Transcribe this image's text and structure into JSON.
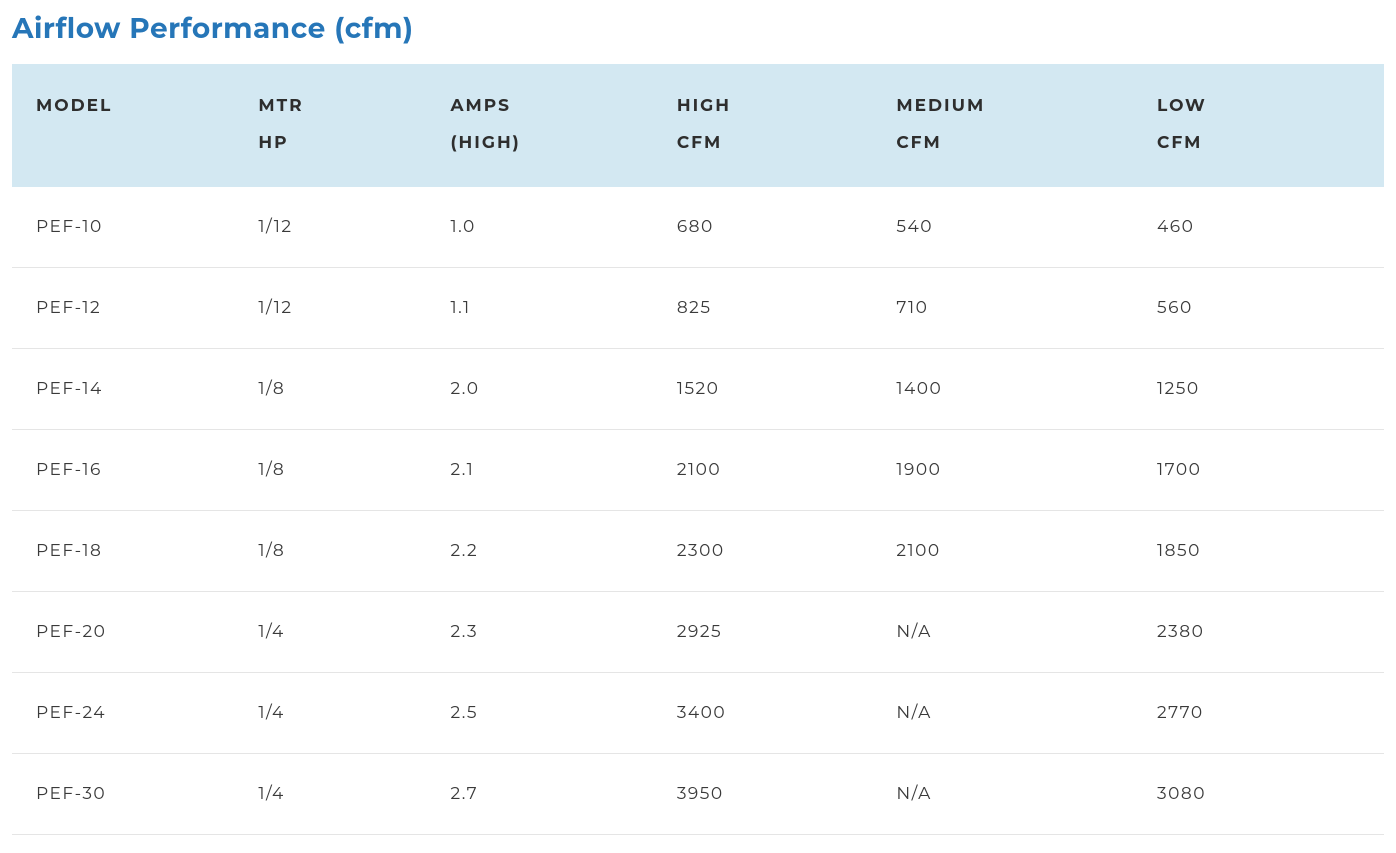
{
  "title": "Airflow Performance (cfm)",
  "table": {
    "columns": [
      {
        "line1": "MODEL",
        "line2": ""
      },
      {
        "line1": "MTR",
        "line2": "HP"
      },
      {
        "line1": "AMPS",
        "line2": "(HIGH)"
      },
      {
        "line1": "HIGH",
        "line2": "CFM"
      },
      {
        "line1": "MEDIUM",
        "line2": "CFM"
      },
      {
        "line1": "LOW",
        "line2": "CFM"
      }
    ],
    "rows": [
      [
        "PEF-10",
        "1/12",
        "1.0",
        "680",
        "540",
        "460"
      ],
      [
        "PEF-12",
        "1/12",
        "1.1",
        "825",
        "710",
        "560"
      ],
      [
        "PEF-14",
        "1/8",
        "2.0",
        "1520",
        "1400",
        "1250"
      ],
      [
        "PEF-16",
        "1/8",
        "2.1",
        "2100",
        "1900",
        "1700"
      ],
      [
        "PEF-18",
        "1/8",
        "2.2",
        "2300",
        "2100",
        "1850"
      ],
      [
        "PEF-20",
        "1/4",
        "2.3",
        "2925",
        "N/A",
        "2380"
      ],
      [
        "PEF-24",
        "1/4",
        "2.5",
        "3400",
        "N/A",
        "2770"
      ],
      [
        "PEF-30",
        "1/4",
        "2.7",
        "3950",
        "N/A",
        "3080"
      ]
    ],
    "styling": {
      "title_color": "#2676b8",
      "title_fontsize": 28,
      "title_fontweight": 700,
      "header_bg": "#d3e8f2",
      "header_text_color": "#2e2e2e",
      "header_fontsize": 17,
      "header_fontweight": 700,
      "header_letter_spacing": 2,
      "row_divider_color": "#e5e5e5",
      "cell_text_color": "#3a3a3a",
      "cell_fontsize": 17,
      "cell_letter_spacing": 1.5,
      "background_color": "#ffffff",
      "column_widths_pct": [
        16.5,
        14,
        16.5,
        16,
        19,
        18
      ]
    }
  }
}
